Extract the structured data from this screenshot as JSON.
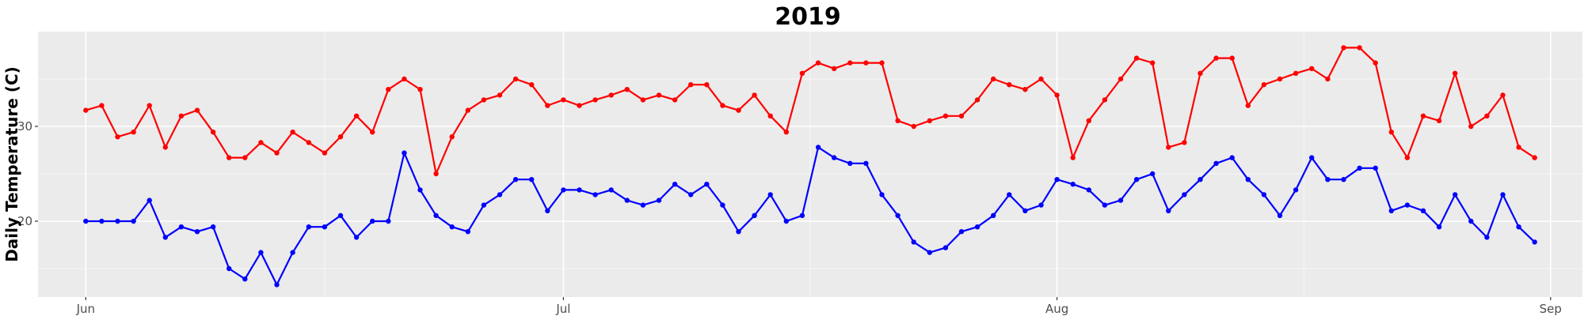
{
  "chart_data": {
    "type": "line",
    "title": "2019",
    "xlabel": "",
    "ylabel": "Daily Temperature (C)",
    "x_range": [
      "2019-05-29",
      "2019-09-03"
    ],
    "ylim": [
      12,
      40
    ],
    "x_ticks": [
      {
        "date": "2019-06-01",
        "label": "Jun"
      },
      {
        "date": "2019-07-01",
        "label": "Jul"
      },
      {
        "date": "2019-08-01",
        "label": "Aug"
      },
      {
        "date": "2019-09-01",
        "label": "Sep"
      }
    ],
    "y_ticks": [
      20,
      30
    ],
    "y_minor_ticks": [
      15,
      25,
      35
    ],
    "grid": true,
    "legend": "none",
    "start_date": "2019-06-01",
    "series": [
      {
        "color": "#FF0000",
        "values": [
          31.7,
          32.2,
          28.9,
          29.4,
          32.2,
          27.8,
          31.1,
          31.7,
          29.4,
          26.7,
          26.7,
          28.3,
          27.2,
          29.4,
          28.3,
          27.2,
          28.9,
          31.1,
          29.4,
          33.9,
          35.0,
          33.9,
          25.0,
          28.9,
          31.7,
          32.8,
          33.3,
          35.0,
          34.4,
          32.2,
          32.8,
          32.2,
          32.8,
          33.3,
          33.9,
          32.8,
          33.3,
          32.8,
          34.4,
          34.4,
          32.2,
          31.7,
          33.3,
          31.1,
          29.4,
          35.6,
          36.7,
          36.1,
          36.7,
          36.7,
          36.7,
          30.6,
          30.0,
          30.6,
          31.1,
          31.1,
          32.8,
          35.0,
          34.4,
          33.9,
          35.0,
          33.3,
          26.7,
          30.6,
          32.8,
          35.0,
          37.2,
          36.7,
          27.8,
          28.3,
          35.6,
          37.2,
          37.2,
          32.2,
          34.4,
          35.0,
          35.6,
          36.1,
          35.0,
          38.3,
          38.3,
          36.7,
          29.4,
          26.7,
          31.1,
          30.6,
          35.6,
          30.0,
          31.1,
          33.3,
          27.8,
          26.7
        ]
      },
      {
        "color": "#0000FF",
        "values": [
          20.0,
          20.0,
          20.0,
          20.0,
          22.2,
          18.3,
          19.4,
          18.9,
          19.4,
          15.0,
          13.9,
          16.7,
          13.3,
          16.7,
          19.4,
          19.4,
          20.6,
          18.3,
          20.0,
          20.0,
          27.2,
          23.3,
          20.6,
          19.4,
          18.9,
          21.7,
          22.8,
          24.4,
          24.4,
          21.1,
          23.3,
          23.3,
          22.8,
          23.3,
          22.2,
          21.7,
          22.2,
          23.9,
          22.8,
          23.9,
          21.7,
          18.9,
          20.6,
          22.8,
          20.0,
          20.6,
          27.8,
          26.7,
          26.1,
          26.1,
          22.8,
          20.6,
          17.8,
          16.7,
          17.2,
          18.9,
          19.4,
          20.6,
          22.8,
          21.1,
          21.7,
          24.4,
          23.9,
          23.3,
          21.7,
          22.2,
          24.4,
          25.0,
          21.1,
          22.8,
          24.4,
          26.1,
          26.7,
          24.4,
          22.8,
          20.6,
          23.3,
          26.7,
          24.4,
          24.4,
          25.6,
          25.6,
          21.1,
          21.7,
          21.1,
          19.4,
          22.8,
          20.0,
          18.3,
          22.8,
          19.4,
          17.8
        ]
      }
    ]
  }
}
